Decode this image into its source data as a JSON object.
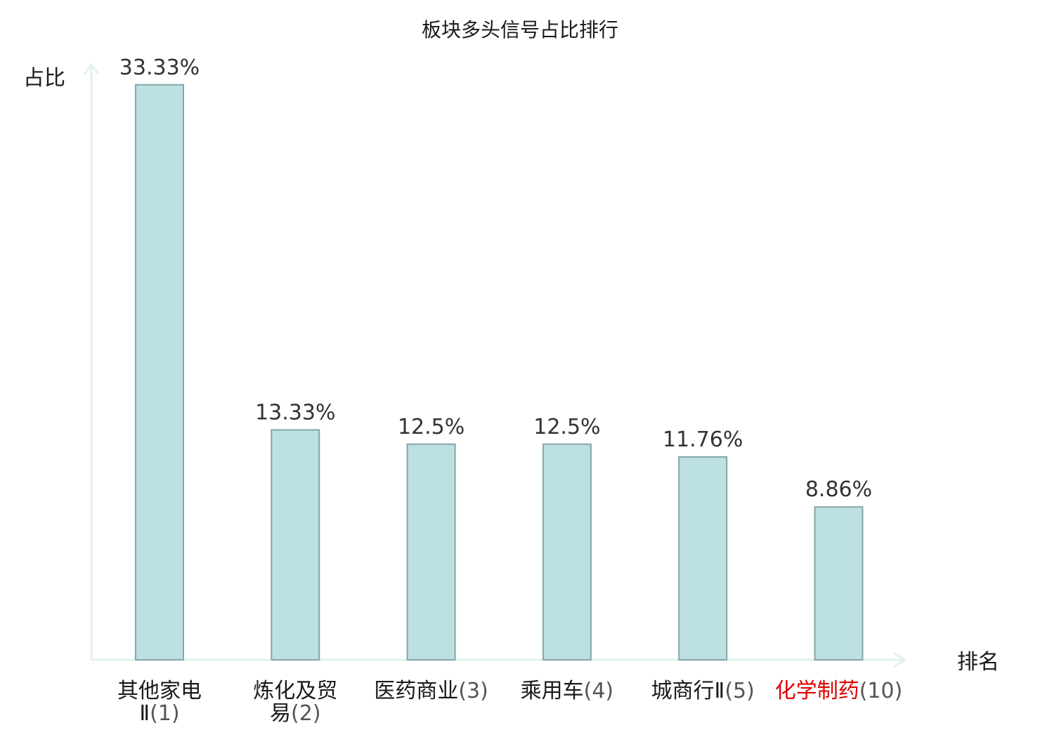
{
  "chart_data": {
    "type": "bar",
    "title": "板块多头信号占比排行",
    "ylabel": "占比",
    "xlabel": "排名",
    "ylim": [
      0,
      34.5
    ],
    "grid": false,
    "categories": [
      {
        "name_lines": [
          "其他家电",
          "Ⅱ"
        ],
        "rank": "(1)",
        "highlight": false
      },
      {
        "name_lines": [
          "炼化及贸",
          "易"
        ],
        "rank": "(2)",
        "highlight": false
      },
      {
        "name_lines": [
          "医药商业"
        ],
        "rank": "(3)",
        "highlight": false
      },
      {
        "name_lines": [
          "乘用车"
        ],
        "rank": "(4)",
        "highlight": false
      },
      {
        "name_lines": [
          "城商行Ⅱ"
        ],
        "rank": "(5)",
        "highlight": false
      },
      {
        "name_lines": [
          "化学制药"
        ],
        "rank": "(10)",
        "highlight": true
      }
    ],
    "values": [
      33.33,
      13.33,
      12.5,
      12.5,
      11.76,
      8.86
    ],
    "value_labels": [
      "33.33%",
      "13.33%",
      "12.5%",
      "12.5%",
      "11.76%",
      "8.86%"
    ]
  },
  "colors": {
    "bar_fill": "#bde0e3",
    "bar_stroke": "#86a6a8",
    "axis": "#e0f2ef",
    "highlight_text": "#e00000",
    "normal_text": "#1a1a1a",
    "rank_text": "#555555"
  }
}
